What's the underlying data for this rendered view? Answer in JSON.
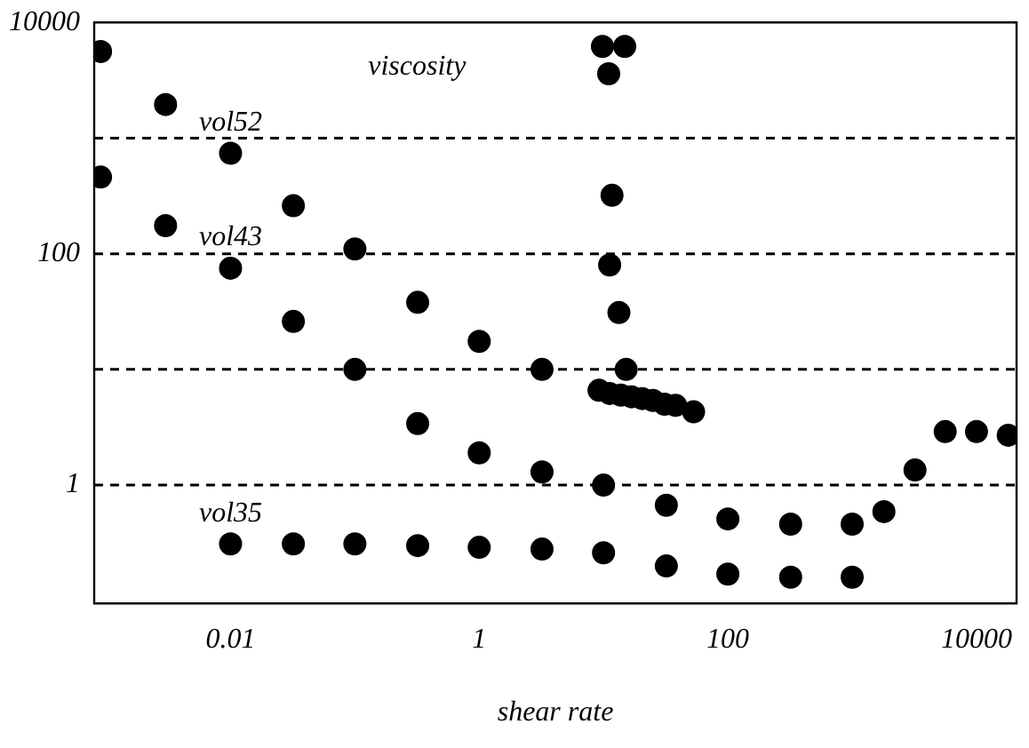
{
  "chart_data": {
    "type": "scatter",
    "xlabel": "shear rate",
    "ylabel": "viscosity",
    "log": "xy",
    "grid": false,
    "marker": "circle",
    "legend": false,
    "xlim": [
      0.0008,
      21000
    ],
    "xticks": [
      0.01,
      1,
      100,
      10000
    ],
    "ylim": [
      0.095,
      10000
    ],
    "yticks": [
      1,
      100,
      10000
    ],
    "series": [
      {
        "name": "vol52",
        "color": "#000000",
        "x": [
          0.0009,
          0.003,
          0.01,
          0.032,
          0.1,
          0.32,
          1,
          3.2,
          9.8,
          14.8,
          11,
          11.7,
          11.2,
          13.3,
          15.2,
          9.2,
          11.2,
          13.8,
          16.8,
          20.5,
          25,
          31,
          38,
          53
        ],
        "values": [
          5600,
          1950,
          740,
          260,
          110,
          38,
          17.5,
          10,
          6200,
          6200,
          3600,
          320,
          80,
          31,
          10,
          6.6,
          6.2,
          6.0,
          5.8,
          5.6,
          5.4,
          5.0,
          4.9,
          4.3
        ]
      },
      {
        "name": "vol43",
        "color": "#000000",
        "x": [
          0.0009,
          0.003,
          0.01,
          0.032,
          0.1,
          0.32,
          1,
          3.2,
          10,
          32,
          100,
          320,
          1000,
          1800,
          3200,
          5600,
          10000,
          18000
        ],
        "values": [
          460,
          175,
          75,
          26,
          10,
          3.4,
          1.9,
          1.3,
          1,
          0.67,
          0.51,
          0.46,
          0.46,
          0.59,
          1.35,
          2.9,
          2.9,
          2.7
        ]
      },
      {
        "name": "vol35",
        "color": "#000000",
        "x": [
          0.01,
          0.032,
          0.1,
          0.32,
          1,
          3.2,
          10,
          32,
          100,
          320,
          1000
        ],
        "values": [
          0.31,
          0.31,
          0.31,
          0.3,
          0.29,
          0.28,
          0.26,
          0.2,
          0.17,
          0.16,
          0.16
        ]
      }
    ],
    "ref_lines": [
      {
        "axis": "y",
        "value": 1,
        "color": "#000000",
        "line_style": "dashed"
      },
      {
        "axis": "y",
        "value": 10,
        "color": "#000000",
        "line_style": "dashed"
      },
      {
        "axis": "y",
        "value": 100,
        "color": "#000000",
        "line_style": "dashed"
      },
      {
        "axis": "y",
        "value": 1000,
        "color": "#000000",
        "line_style": "dashed"
      }
    ]
  }
}
